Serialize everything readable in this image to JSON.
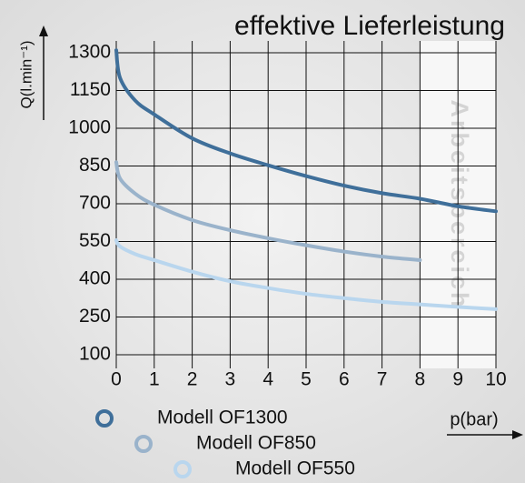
{
  "chart_data": {
    "type": "line",
    "title": "effektive Lieferleistung",
    "y_label": "Q(l.min⁻¹)",
    "x_label": "p(bar)",
    "region_label": "Arbeitsbereich",
    "region": [
      8,
      10
    ],
    "x": [
      0,
      0.1,
      0.5,
      1,
      2,
      3,
      4,
      5,
      6,
      7,
      8,
      9,
      10
    ],
    "series": [
      {
        "name": "Modell OF1300",
        "color": "#3f6f9a",
        "values": [
          1310,
          1200,
          1110,
          1055,
          960,
          900,
          853,
          810,
          772,
          742,
          720,
          690,
          670
        ]
      },
      {
        "name": "Modell OF850",
        "color": "#9ab3cb",
        "values": [
          865,
          800,
          740,
          696,
          635,
          595,
          563,
          535,
          510,
          490,
          476,
          null,
          null
        ]
      },
      {
        "name": "Modell OF550",
        "color": "#b9d6ee",
        "values": [
          555,
          530,
          500,
          476,
          430,
          392,
          365,
          342,
          325,
          310,
          300,
          290,
          281
        ]
      }
    ],
    "xlim": [
      0,
      10
    ],
    "xticks": [
      0,
      1,
      2,
      3,
      4,
      5,
      6,
      7,
      8,
      9,
      10
    ],
    "ylim": [
      100,
      1300
    ],
    "yticks": [
      100,
      250,
      400,
      550,
      700,
      850,
      1000,
      1150,
      1300
    ],
    "grid": true
  }
}
